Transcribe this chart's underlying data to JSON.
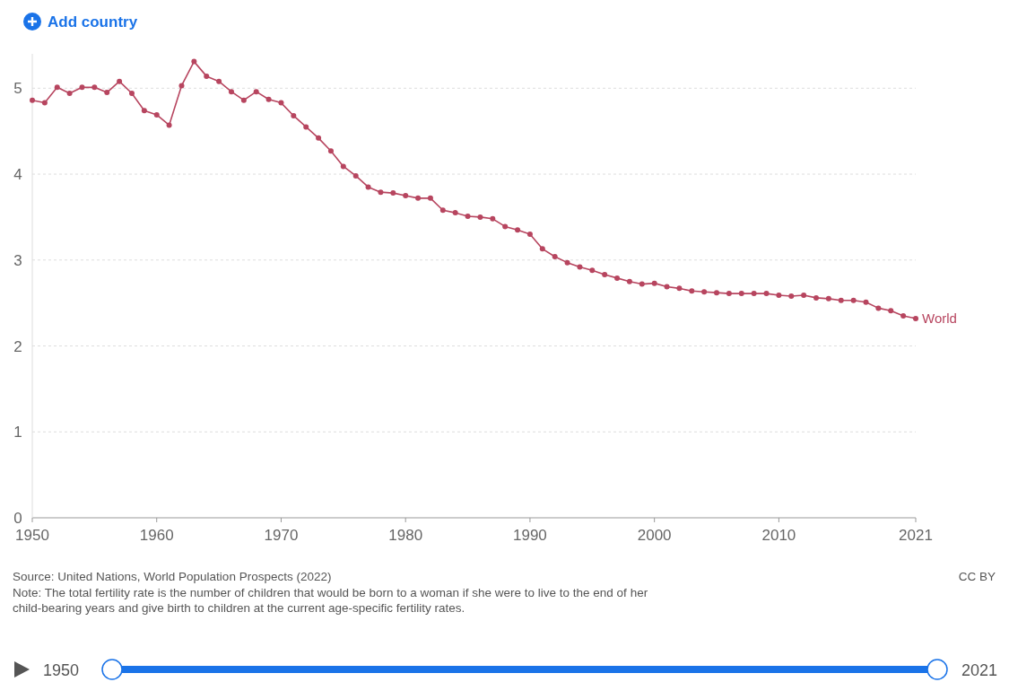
{
  "chart_data": {
    "type": "line",
    "x": [
      1950,
      1951,
      1952,
      1953,
      1954,
      1955,
      1956,
      1957,
      1958,
      1959,
      1960,
      1961,
      1962,
      1963,
      1964,
      1965,
      1966,
      1967,
      1968,
      1969,
      1970,
      1971,
      1972,
      1973,
      1974,
      1975,
      1976,
      1977,
      1978,
      1979,
      1980,
      1981,
      1982,
      1983,
      1984,
      1985,
      1986,
      1987,
      1988,
      1989,
      1990,
      1991,
      1992,
      1993,
      1994,
      1995,
      1996,
      1997,
      1998,
      1999,
      2000,
      2001,
      2002,
      2003,
      2004,
      2005,
      2006,
      2007,
      2008,
      2009,
      2010,
      2011,
      2012,
      2013,
      2014,
      2015,
      2016,
      2017,
      2018,
      2019,
      2020,
      2021
    ],
    "series": [
      {
        "name": "World",
        "color": "#b7455f",
        "values": [
          4.86,
          4.83,
          5.01,
          4.94,
          5.01,
          5.01,
          4.95,
          5.08,
          4.94,
          4.74,
          4.69,
          4.57,
          5.03,
          5.31,
          5.14,
          5.08,
          4.96,
          4.86,
          4.96,
          4.87,
          4.83,
          4.68,
          4.55,
          4.42,
          4.27,
          4.09,
          3.98,
          3.85,
          3.79,
          3.78,
          3.75,
          3.72,
          3.72,
          3.58,
          3.55,
          3.51,
          3.5,
          3.48,
          3.39,
          3.35,
          3.3,
          3.13,
          3.04,
          2.97,
          2.92,
          2.88,
          2.83,
          2.79,
          2.75,
          2.72,
          2.73,
          2.69,
          2.67,
          2.64,
          2.63,
          2.62,
          2.61,
          2.61,
          2.61,
          2.61,
          2.59,
          2.58,
          2.59,
          2.56,
          2.55,
          2.53,
          2.53,
          2.51,
          2.44,
          2.41,
          2.35,
          2.32
        ]
      }
    ],
    "xlim": [
      1950,
      2021
    ],
    "xticks": [
      1950,
      1960,
      1970,
      1980,
      1990,
      2000,
      2010,
      2021
    ],
    "ylim": [
      0,
      5.4
    ],
    "yticks": [
      0,
      1,
      2,
      3,
      4,
      5
    ],
    "grid": "y",
    "marker": "circle",
    "line_style": "solid",
    "annotations": [
      "Add country",
      "Source: United Nations, World Population Prospects (2022)",
      "CC BY",
      "Note: The total fertility rate is the number of children that would be born to a woman if she were to live to the end of her child-bearing years and give birth to children at the current age-specific fertility rates.",
      "1950",
      "2021"
    ]
  }
}
